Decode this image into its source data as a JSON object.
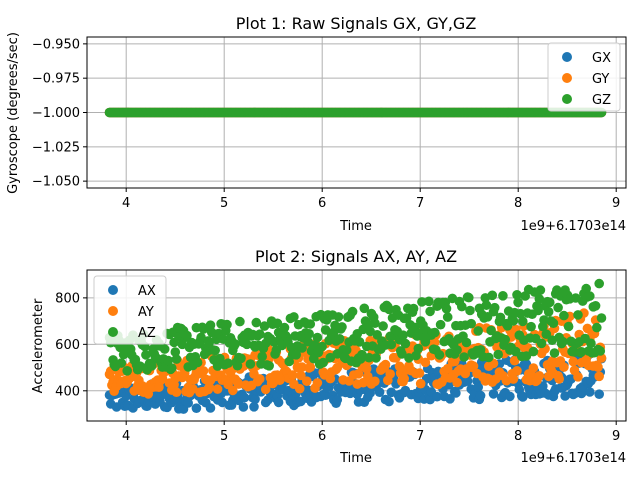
{
  "colors": {
    "blue": "#1f77b4",
    "orange": "#ff7f0e",
    "green": "#2ca02c",
    "grid": "#b0b0b0"
  },
  "chart_data": [
    {
      "type": "scatter",
      "title": "Plot 1: Raw Signals GX, GY,GZ",
      "xlabel": "Time",
      "ylabel": "Gyroscope (degrees/sec)",
      "offset_label": "1e9+6.1703e14",
      "xlim": [
        3.6,
        9.1
      ],
      "ylim": [
        -1.055,
        -0.945
      ],
      "grid": true,
      "legend_position": "upper-right",
      "xticks": [
        4,
        5,
        6,
        7,
        8,
        9
      ],
      "xtick_labels": [
        "4",
        "5",
        "6",
        "7",
        "8",
        "9"
      ],
      "yticks": [
        -0.95,
        -0.975,
        -1.0,
        -1.025,
        -1.05
      ],
      "ytick_labels": [
        "−0.950",
        "−0.975",
        "−1.000",
        "−1.025",
        "−1.050"
      ],
      "x_range": [
        3.83,
        8.85
      ],
      "series": [
        {
          "name": "GX",
          "color": "#1f77b4",
          "value": -1.0
        },
        {
          "name": "GY",
          "color": "#ff7f0e",
          "value": -1.0
        },
        {
          "name": "GZ",
          "color": "#2ca02c",
          "value": -1.0
        }
      ]
    },
    {
      "type": "scatter",
      "title": "Plot 2: Signals AX, AY, AZ",
      "xlabel": "Time",
      "ylabel": "Accelerometer",
      "offset_label": "1e9+6.1703e14",
      "xlim": [
        3.6,
        9.1
      ],
      "ylim": [
        270,
        920
      ],
      "grid": true,
      "legend_position": "upper-left",
      "xticks": [
        4,
        5,
        6,
        7,
        8,
        9
      ],
      "xtick_labels": [
        "4",
        "5",
        "6",
        "7",
        "8",
        "9"
      ],
      "yticks": [
        400,
        600,
        800
      ],
      "ytick_labels": [
        "400",
        "600",
        "800"
      ],
      "x_range": [
        3.83,
        8.85
      ],
      "series": [
        {
          "name": "AX",
          "color": "#1f77b4",
          "start": [
            310,
            420
          ],
          "end": [
            380,
            560
          ]
        },
        {
          "name": "AY",
          "color": "#ff7f0e",
          "start": [
            380,
            500
          ],
          "end": [
            450,
            750
          ]
        },
        {
          "name": "AZ",
          "color": "#2ca02c",
          "start": [
            480,
            640
          ],
          "end": [
            560,
            880
          ]
        }
      ]
    }
  ]
}
